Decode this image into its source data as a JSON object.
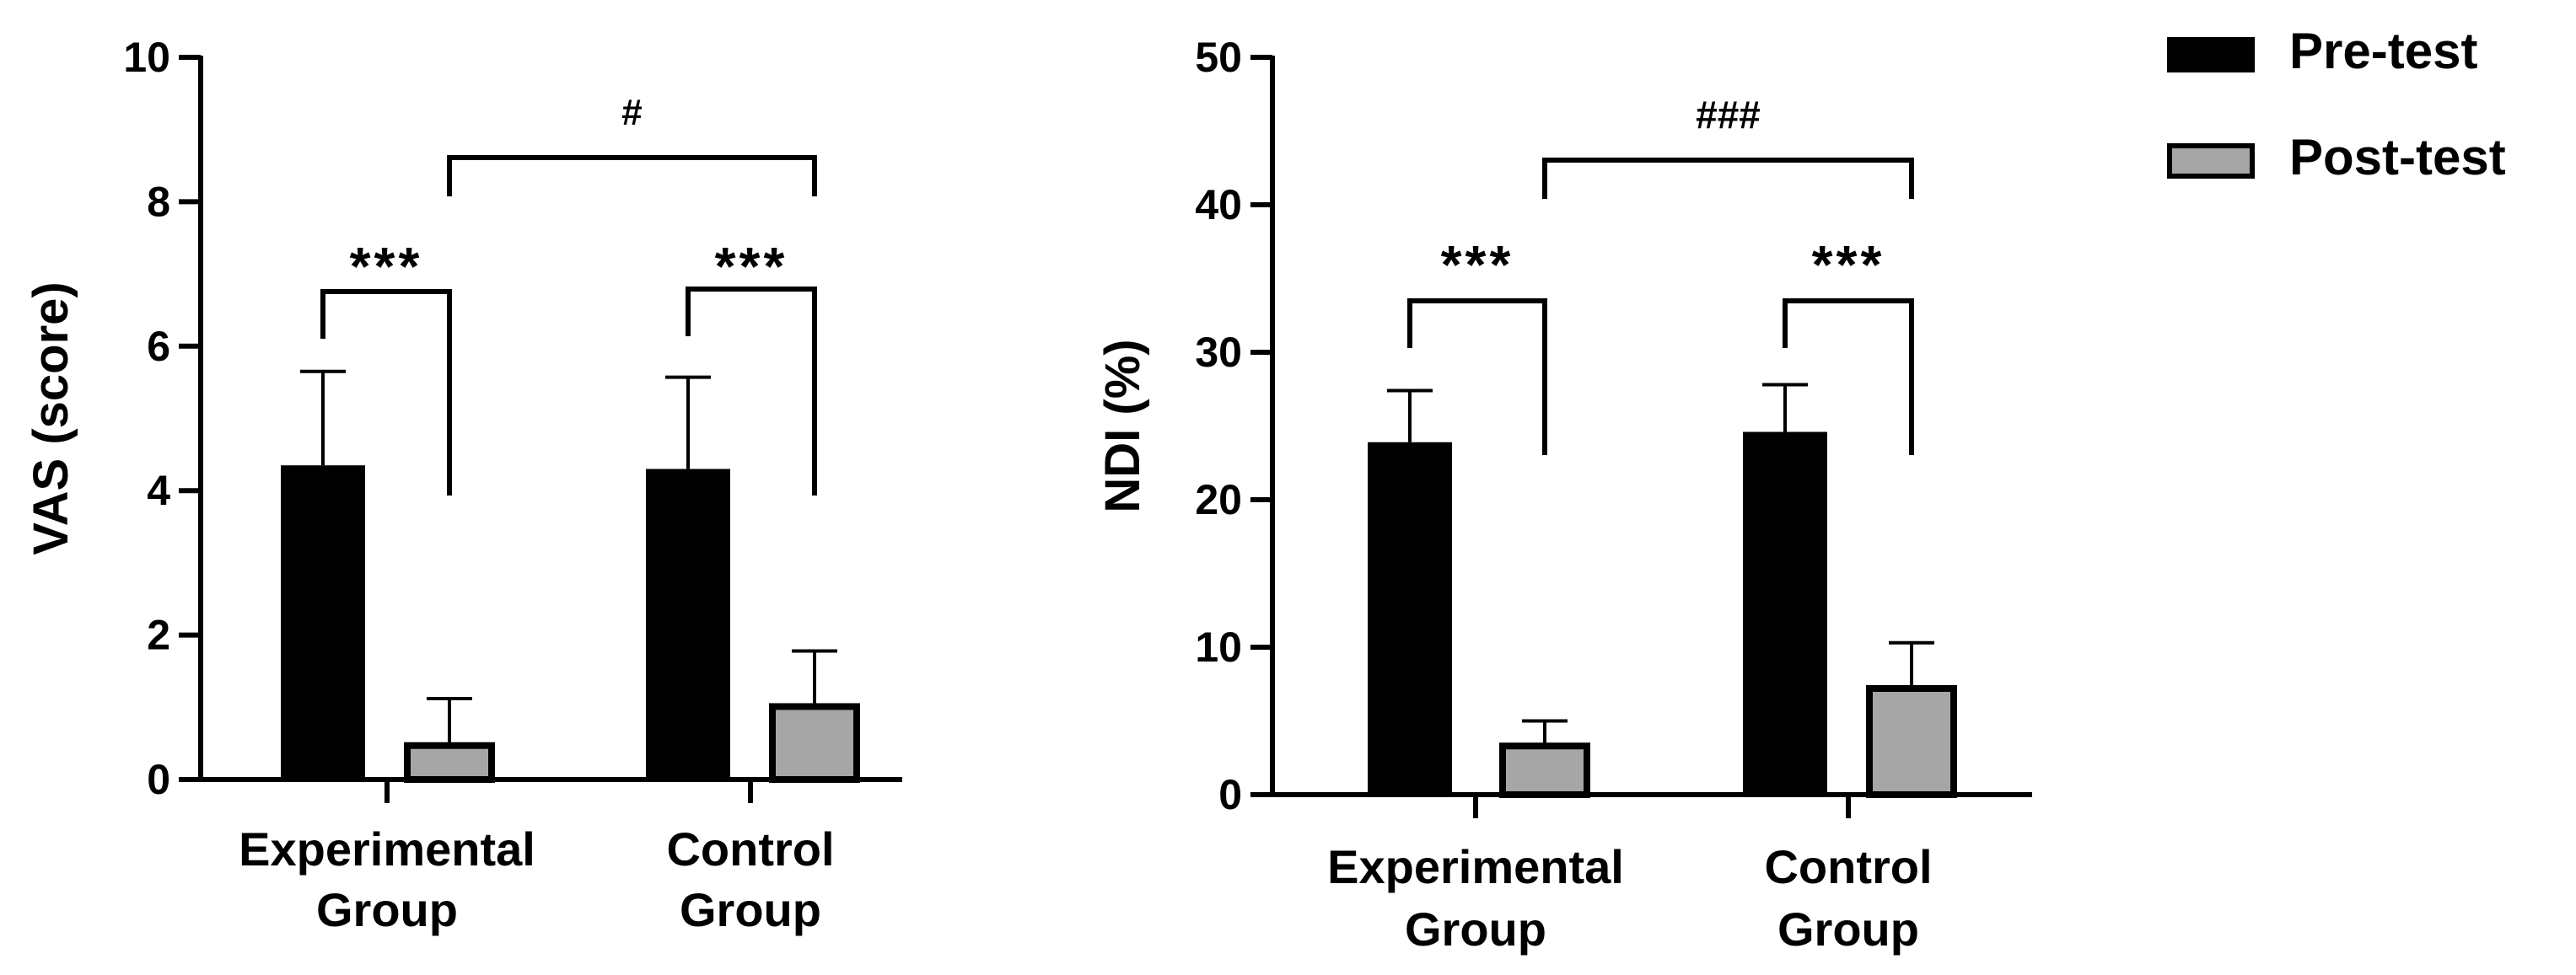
{
  "legend": {
    "items": [
      {
        "label": "Pre-test",
        "color": "#000000"
      },
      {
        "label": "Post-test",
        "color": "#a6a6a6"
      }
    ],
    "position": "top-right"
  },
  "chart_data": [
    {
      "type": "bar",
      "ylabel": "VAS (score)",
      "xlabel": "",
      "ylim": [
        0,
        10
      ],
      "yticks": [
        "0",
        "2",
        "4",
        "6",
        "8",
        "10"
      ],
      "categories": [
        [
          "Experimental",
          "Group"
        ],
        [
          "Control",
          "Group"
        ]
      ],
      "series": [
        {
          "name": "Pre-test",
          "color": "#000000",
          "values": [
            4.35,
            4.3
          ],
          "errors": [
            1.3,
            1.27
          ]
        },
        {
          "name": "Post-test",
          "color": "#a6a6a6",
          "values": [
            0.47,
            1.01
          ],
          "errors": [
            0.65,
            0.77
          ]
        }
      ],
      "within_group_marks": [
        "***",
        "***"
      ],
      "between_group_mark": "#"
    },
    {
      "type": "bar",
      "ylabel": "NDI (%)",
      "xlabel": "",
      "ylim": [
        0,
        50
      ],
      "yticks": [
        "0",
        "10",
        "20",
        "30",
        "40",
        "50"
      ],
      "categories": [
        [
          "Experimental",
          "Group"
        ],
        [
          "Control",
          "Group"
        ]
      ],
      "series": [
        {
          "name": "Pre-test",
          "color": "#000000",
          "values": [
            23.9,
            24.6
          ],
          "errors": [
            3.5,
            3.2
          ]
        },
        {
          "name": "Post-test",
          "color": "#a6a6a6",
          "values": [
            3.3,
            7.2
          ],
          "errors": [
            1.7,
            3.1
          ]
        }
      ],
      "within_group_marks": [
        "***",
        "***"
      ],
      "between_group_mark": "###"
    }
  ]
}
